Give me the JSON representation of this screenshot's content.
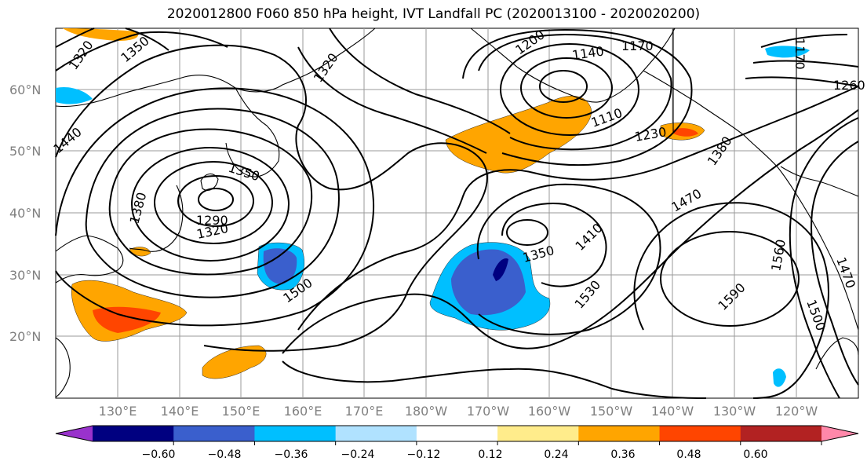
{
  "title": "2020012800 F060 850 hPa height, IVT Landfall PC (2020013100 - 2020020200)",
  "lat_labels": [
    "60°N",
    "50°N",
    "40°N",
    "30°N",
    "20°N"
  ],
  "lon_labels": [
    "130°E",
    "140°E",
    "150°E",
    "160°E",
    "170°E",
    "180°W",
    "170°W",
    "160°W",
    "150°W",
    "140°W",
    "130°W",
    "120°W"
  ],
  "contour_labels": [
    "1320",
    "1350",
    "1320",
    "1200",
    "1140",
    "1170",
    "1110",
    "1230",
    "1440",
    "1350",
    "1290",
    "1320",
    "1380",
    "1500",
    "1350",
    "1410",
    "1470",
    "1380",
    "1530",
    "1560",
    "1590",
    "1500",
    "1470",
    "1260",
    "1170"
  ],
  "colorbar": {
    "ticks": [
      "−0.60",
      "−0.48",
      "−0.36",
      "−0.24",
      "−0.12",
      "0.12",
      "0.24",
      "0.36",
      "0.48",
      "0.60"
    ],
    "colors": [
      "#9932cc",
      "#000080",
      "#3a5fcd",
      "#00bfff",
      "#b0e2ff",
      "#ffffff",
      "#ffec8b",
      "#ffa500",
      "#ff4500",
      "#b22222",
      "#ff88aa"
    ]
  }
}
